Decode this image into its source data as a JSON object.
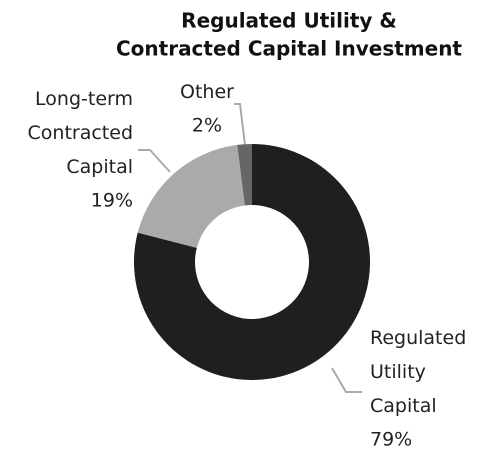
{
  "chart_data": {
    "type": "donut",
    "title": [
      "Regulated Utility &",
      "Contracted Capital Investment"
    ],
    "categories": [
      "Regulated Utility Capital",
      "Long-term Contracted Capital",
      "Other"
    ],
    "values": [
      79,
      19,
      2
    ],
    "value_labels": [
      "79%",
      "19%",
      "2%"
    ],
    "colors": [
      "#1f1f1f",
      "#aaaaaa",
      "#666666"
    ]
  }
}
